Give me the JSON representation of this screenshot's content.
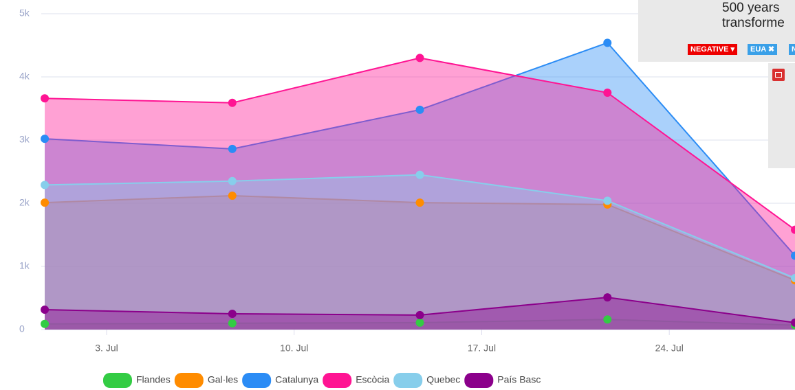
{
  "chart_data": {
    "type": "area",
    "x": [
      1,
      8,
      15,
      22,
      29
    ],
    "xlim": [
      0.87,
      29
    ],
    "xticks": [
      {
        "value": 3,
        "label": "3. Jul"
      },
      {
        "value": 10,
        "label": "10. Jul"
      },
      {
        "value": 17,
        "label": "17. Jul"
      },
      {
        "value": 24,
        "label": "24. Jul"
      }
    ],
    "ylim": [
      0,
      5000
    ],
    "yticks": [
      0,
      {
        "value": 1000,
        "label": "1k"
      },
      {
        "value": 2000,
        "label": "2k"
      },
      {
        "value": 3000,
        "label": "3k"
      },
      {
        "value": 4000,
        "label": "4k"
      },
      {
        "value": 5000,
        "label": "5k"
      }
    ],
    "grid": true,
    "series": [
      {
        "name": "Flandes",
        "color": "#33cc44",
        "values": [
          90,
          100,
          110,
          160,
          70
        ]
      },
      {
        "name": "Gal·les",
        "color": "#ff8c00",
        "values": [
          2010,
          2120,
          2010,
          1980,
          780
        ]
      },
      {
        "name": "Catalunya",
        "color": "#2b8cf5",
        "values": [
          3020,
          2860,
          3480,
          4540,
          1170
        ]
      },
      {
        "name": "Escòcia",
        "color": "#ff1493",
        "values": [
          3660,
          3590,
          4300,
          3750,
          1580
        ]
      },
      {
        "name": "Quebec",
        "color": "#87ceeb",
        "values": [
          2290,
          2350,
          2450,
          2040,
          815
        ]
      },
      {
        "name": "País Basc",
        "color": "#8b008b",
        "values": [
          315,
          250,
          230,
          510,
          110
        ]
      }
    ]
  },
  "overlay": {
    "lines": [
      "500 years",
      "transforme"
    ],
    "tags": [
      "NEGATIVE",
      "EUA",
      "N"
    ]
  }
}
